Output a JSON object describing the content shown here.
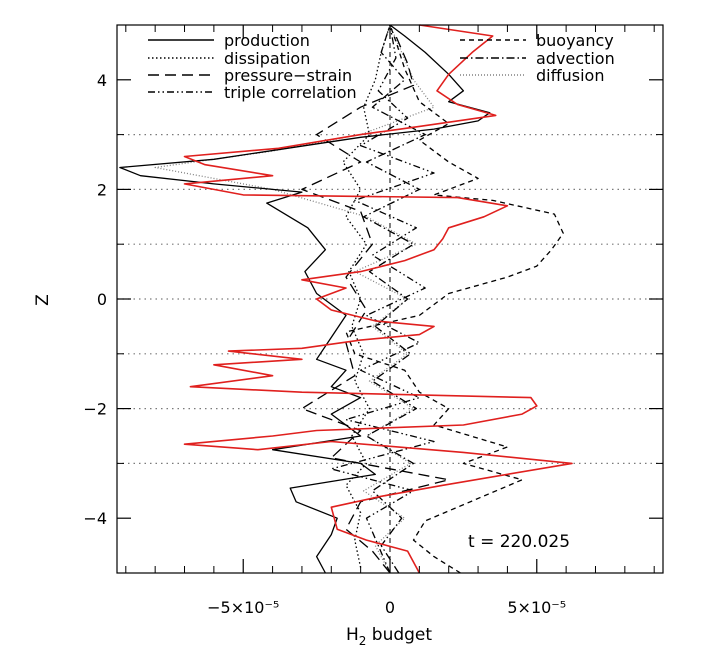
{
  "chart_data": {
    "type": "line",
    "title": "",
    "xlabel": "H₂ budget",
    "ylabel": "Z",
    "xlim": [
      -9.3e-05,
      9.3e-05
    ],
    "ylim": [
      -5,
      5
    ],
    "x_ticks": [
      {
        "value": -5e-05,
        "label": "−5×10⁻⁵"
      },
      {
        "value": 0,
        "label": "0"
      },
      {
        "value": 5e-05,
        "label": "5×10⁻⁵"
      }
    ],
    "y_ticks": [
      {
        "value": -4,
        "label": "−4"
      },
      {
        "value": -2,
        "label": "−2"
      },
      {
        "value": 0,
        "label": "0"
      },
      {
        "value": 2,
        "label": "2"
      },
      {
        "value": 4,
        "label": "4"
      }
    ],
    "reference_lines_y": [
      -3,
      -2,
      -1,
      0,
      1,
      2,
      3
    ],
    "grid": false,
    "legend_position": "top",
    "annotation": "t = 220.025",
    "series": [
      {
        "name": "production",
        "style": "solid",
        "color": "#000000",
        "points": [
          [
            -2.2e-05,
            -5
          ],
          [
            -2.5e-05,
            -4.7
          ],
          [
            -2e-05,
            -4.3
          ],
          [
            -1.8e-05,
            -4.0
          ],
          [
            -3.2e-05,
            -3.7
          ],
          [
            -3.4e-05,
            -3.45
          ],
          [
            -5e-06,
            -3.2
          ],
          [
            -1e-05,
            -3.0
          ],
          [
            -4e-05,
            -2.75
          ],
          [
            -1e-05,
            -2.5
          ],
          [
            -2e-05,
            -2.1
          ],
          [
            -1e-05,
            -1.8
          ],
          [
            -2e-05,
            -1.6
          ],
          [
            -1.5e-05,
            -1.3
          ],
          [
            -2.5e-05,
            -1.1
          ],
          [
            -2e-05,
            -0.7
          ],
          [
            -1.5e-05,
            -0.3
          ],
          [
            -2.5e-05,
            0.1
          ],
          [
            -2.9e-05,
            0.5
          ],
          [
            -2.2e-05,
            0.9
          ],
          [
            -2.8e-05,
            1.3
          ],
          [
            -4.2e-05,
            1.75
          ],
          [
            -3e-05,
            1.95
          ],
          [
            -6e-05,
            2.1
          ],
          [
            -8.5e-05,
            2.25
          ],
          [
            -9.2e-05,
            2.4
          ],
          [
            -6e-05,
            2.55
          ],
          [
            -3.5e-05,
            2.75
          ],
          [
            -1e-05,
            2.95
          ],
          [
            1.5e-05,
            3.1
          ],
          [
            3e-05,
            3.25
          ],
          [
            3.4e-05,
            3.4
          ],
          [
            2e-05,
            3.6
          ],
          [
            2.5e-05,
            3.8
          ],
          [
            2e-05,
            4.1
          ],
          [
            1.2e-05,
            4.5
          ],
          [
            5e-06,
            4.8
          ],
          [
            0,
            5
          ]
        ]
      },
      {
        "name": "dissipation",
        "style": "dotted",
        "color": "#000000",
        "points": [
          [
            -1e-05,
            -4.9
          ],
          [
            -1.2e-05,
            -4.4
          ],
          [
            -1e-05,
            -3.9
          ],
          [
            -1.5e-05,
            -3.4
          ],
          [
            -8e-06,
            -3.0
          ],
          [
            -1.3e-05,
            -2.5
          ],
          [
            -7e-06,
            -2.0
          ],
          [
            -1.2e-05,
            -1.5
          ],
          [
            -9e-06,
            -1.0
          ],
          [
            -1.3e-05,
            -0.5
          ],
          [
            -1e-05,
            0.0
          ],
          [
            -1.4e-05,
            0.5
          ],
          [
            -8e-06,
            1.0
          ],
          [
            -1.5e-05,
            1.5
          ],
          [
            -1e-05,
            2.0
          ],
          [
            -1.6e-05,
            2.5
          ],
          [
            -7e-06,
            3.0
          ],
          [
            -9e-06,
            3.5
          ],
          [
            -5e-06,
            4.0
          ],
          [
            -3e-06,
            4.5
          ],
          [
            0,
            5
          ]
        ]
      },
      {
        "name": "pressure−strain",
        "style": "longdash",
        "color": "#000000",
        "points": [
          [
            0,
            -5
          ],
          [
            -6e-06,
            -4.6
          ],
          [
            -1.5e-05,
            -4.2
          ],
          [
            -1e-05,
            -3.7
          ],
          [
            2e-05,
            -3.3
          ],
          [
            -2e-05,
            -2.9
          ],
          [
            -1e-05,
            -2.4
          ],
          [
            -3e-05,
            -2.0
          ],
          [
            -1.2e-05,
            -1.4
          ],
          [
            -1.5e-05,
            -0.8
          ],
          [
            -8e-06,
            -0.2
          ],
          [
            -1.5e-05,
            0.4
          ],
          [
            -6e-06,
            1.0
          ],
          [
            -1e-05,
            1.6
          ],
          [
            -3e-05,
            2.0
          ],
          [
            -1e-05,
            2.5
          ],
          [
            -2.5e-05,
            3.0
          ],
          [
            -1e-05,
            3.5
          ],
          [
            8e-06,
            3.9
          ],
          [
            6e-06,
            4.3
          ],
          [
            2e-06,
            4.8
          ]
        ]
      },
      {
        "name": "triple correlation",
        "style": "dashdotdot",
        "color": "#000000",
        "points": [
          [
            0,
            -5
          ],
          [
            -4e-06,
            -4.5
          ],
          [
            -8e-06,
            -4.0
          ],
          [
            8e-06,
            -3.5
          ],
          [
            -2e-05,
            -3.1
          ],
          [
            1.5e-05,
            -2.6
          ],
          [
            -1.5e-05,
            -2.2
          ],
          [
            1e-05,
            -1.8
          ],
          [
            -1e-05,
            -1.3
          ],
          [
            1e-05,
            -0.8
          ],
          [
            -8e-06,
            -0.3
          ],
          [
            1.2e-05,
            0.2
          ],
          [
            -6e-06,
            0.8
          ],
          [
            9e-06,
            1.3
          ],
          [
            -1.2e-05,
            1.8
          ],
          [
            1.5e-05,
            2.3
          ],
          [
            -1e-05,
            2.8
          ],
          [
            6e-06,
            3.3
          ],
          [
            -4e-06,
            3.8
          ],
          [
            2e-06,
            4.4
          ],
          [
            0,
            5
          ]
        ]
      },
      {
        "name": "buoyancy",
        "style": "shortdash",
        "color": "#000000",
        "points": [
          [
            2.4e-05,
            -5.0
          ],
          [
            1.5e-05,
            -4.7
          ],
          [
            8e-06,
            -4.4
          ],
          [
            1.2e-05,
            -4.05
          ],
          [
            4.5e-05,
            -3.3
          ],
          [
            2.5e-05,
            -3.0
          ],
          [
            4e-05,
            -2.7
          ],
          [
            1.5e-05,
            -2.3
          ],
          [
            2e-05,
            -2.0
          ],
          [
            1e-05,
            -1.7
          ],
          [
            5e-06,
            -1.3
          ],
          [
            -1.2e-05,
            -1.0
          ],
          [
            -1.5e-05,
            -0.6
          ],
          [
            1e-05,
            -0.3
          ],
          [
            2e-05,
            0.1
          ],
          [
            4e-05,
            0.4
          ],
          [
            5e-05,
            0.6
          ],
          [
            5.5e-05,
            0.9
          ],
          [
            5.9e-05,
            1.2
          ],
          [
            5.6e-05,
            1.55
          ],
          [
            3.5e-05,
            1.8
          ],
          [
            1.5e-05,
            1.9
          ],
          [
            3e-05,
            2.2
          ],
          [
            2e-05,
            2.5
          ],
          [
            1e-05,
            2.9
          ],
          [
            2e-05,
            3.2
          ],
          [
            1e-05,
            3.6
          ],
          [
            5e-06,
            4.2
          ],
          [
            2e-06,
            4.7
          ],
          [
            0,
            5
          ]
        ]
      },
      {
        "name": "advection",
        "style": "dashdot",
        "color": "#000000",
        "points": [
          [
            3e-06,
            -5
          ],
          [
            -3e-06,
            -4.5
          ],
          [
            4e-06,
            -4.0
          ],
          [
            -6e-06,
            -3.5
          ],
          [
            8e-06,
            -3.0
          ],
          [
            -8e-06,
            -2.5
          ],
          [
            9e-06,
            -2.0
          ],
          [
            -6e-06,
            -1.5
          ],
          [
            7e-06,
            -1.0
          ],
          [
            -5e-06,
            -0.5
          ],
          [
            6e-06,
            0
          ],
          [
            -7e-06,
            0.5
          ],
          [
            8e-06,
            1.0
          ],
          [
            -9e-06,
            1.5
          ],
          [
            1e-05,
            2.0
          ],
          [
            -8e-06,
            2.5
          ],
          [
            1.2e-05,
            3.0
          ],
          [
            -6e-06,
            3.5
          ],
          [
            5e-06,
            4.0
          ],
          [
            -3e-06,
            4.5
          ],
          [
            0,
            5
          ]
        ]
      },
      {
        "name": "diffusion",
        "style": "fine-dotted",
        "color": "#808080",
        "points": [
          [
            0,
            -5
          ],
          [
            -5e-06,
            -4.5
          ],
          [
            5e-06,
            -4.0
          ],
          [
            -9e-06,
            -3.5
          ],
          [
            7e-06,
            -3.0
          ],
          [
            -8e-06,
            -2.5
          ],
          [
            8e-06,
            -2.0
          ],
          [
            -7e-06,
            -1.5
          ],
          [
            6e-06,
            -1.0
          ],
          [
            -6e-06,
            -0.5
          ],
          [
            6e-06,
            0
          ],
          [
            -1.2e-05,
            0.5
          ],
          [
            9e-06,
            1.0
          ],
          [
            -8e-06,
            1.5
          ],
          [
            -4e-05,
            2.0
          ],
          [
            -8e-05,
            2.4
          ],
          [
            -4e-05,
            2.7
          ],
          [
            -1e-05,
            3.0
          ],
          [
            1.5e-05,
            3.5
          ],
          [
            8e-06,
            4.0
          ],
          [
            4e-06,
            4.5
          ],
          [
            0,
            5
          ]
        ]
      },
      {
        "name": "",
        "style": "solid",
        "color": "#e0201e",
        "points": [
          [
            1e-05,
            -5.0
          ],
          [
            6e-06,
            -4.6
          ],
          [
            -8e-06,
            -4.4
          ],
          [
            -1.8e-05,
            -4.2
          ],
          [
            -2e-05,
            -3.8
          ],
          [
            -3e-06,
            -3.6
          ],
          [
            1.8e-05,
            -3.4
          ],
          [
            6.2e-05,
            -3.0
          ],
          [
            2.5e-05,
            -2.8
          ],
          [
            -2e-05,
            -2.6
          ],
          [
            -4.5e-05,
            -2.75
          ],
          [
            -7e-05,
            -2.65
          ],
          [
            -4e-05,
            -2.5
          ],
          [
            -2.5e-05,
            -2.4
          ],
          [
            2.5e-05,
            -2.3
          ],
          [
            4.5e-05,
            -2.1
          ],
          [
            5e-05,
            -1.95
          ],
          [
            4.8e-05,
            -1.8
          ],
          [
            1e-05,
            -1.75
          ],
          [
            -3e-05,
            -1.7
          ],
          [
            -6.8e-05,
            -1.6
          ],
          [
            -4e-05,
            -1.4
          ],
          [
            -6e-05,
            -1.2
          ],
          [
            -3e-05,
            -1.1
          ],
          [
            -5.5e-05,
            -0.95
          ],
          [
            -3e-05,
            -0.9
          ],
          [
            -1e-05,
            -0.75
          ],
          [
            1e-05,
            -0.65
          ],
          [
            1.5e-05,
            -0.5
          ],
          [
            -5e-06,
            -0.4
          ],
          [
            -2e-05,
            -0.2
          ],
          [
            -2.5e-05,
            0.0
          ],
          [
            -1.5e-05,
            0.2
          ],
          [
            -3e-05,
            0.35
          ],
          [
            -1e-05,
            0.5
          ],
          [
            5e-06,
            0.7
          ],
          [
            1.5e-05,
            0.9
          ],
          [
            1.8e-05,
            1.1
          ],
          [
            2e-05,
            1.3
          ],
          [
            3.2e-05,
            1.5
          ],
          [
            4e-05,
            1.7
          ],
          [
            2.3e-05,
            1.85
          ],
          [
            -5e-05,
            1.9
          ],
          [
            -7e-05,
            2.1
          ],
          [
            -4e-05,
            2.25
          ],
          [
            -6.3e-05,
            2.45
          ],
          [
            -7e-05,
            2.6
          ],
          [
            -3.8e-05,
            2.75
          ],
          [
            -1e-05,
            3.0
          ],
          [
            1e-05,
            3.15
          ],
          [
            3.6e-05,
            3.35
          ],
          [
            2.3e-05,
            3.55
          ],
          [
            1.6e-05,
            3.8
          ],
          [
            2e-05,
            4.1
          ],
          [
            2.8e-05,
            4.5
          ],
          [
            3.5e-05,
            4.8
          ],
          [
            1e-05,
            5.0
          ]
        ]
      }
    ]
  }
}
